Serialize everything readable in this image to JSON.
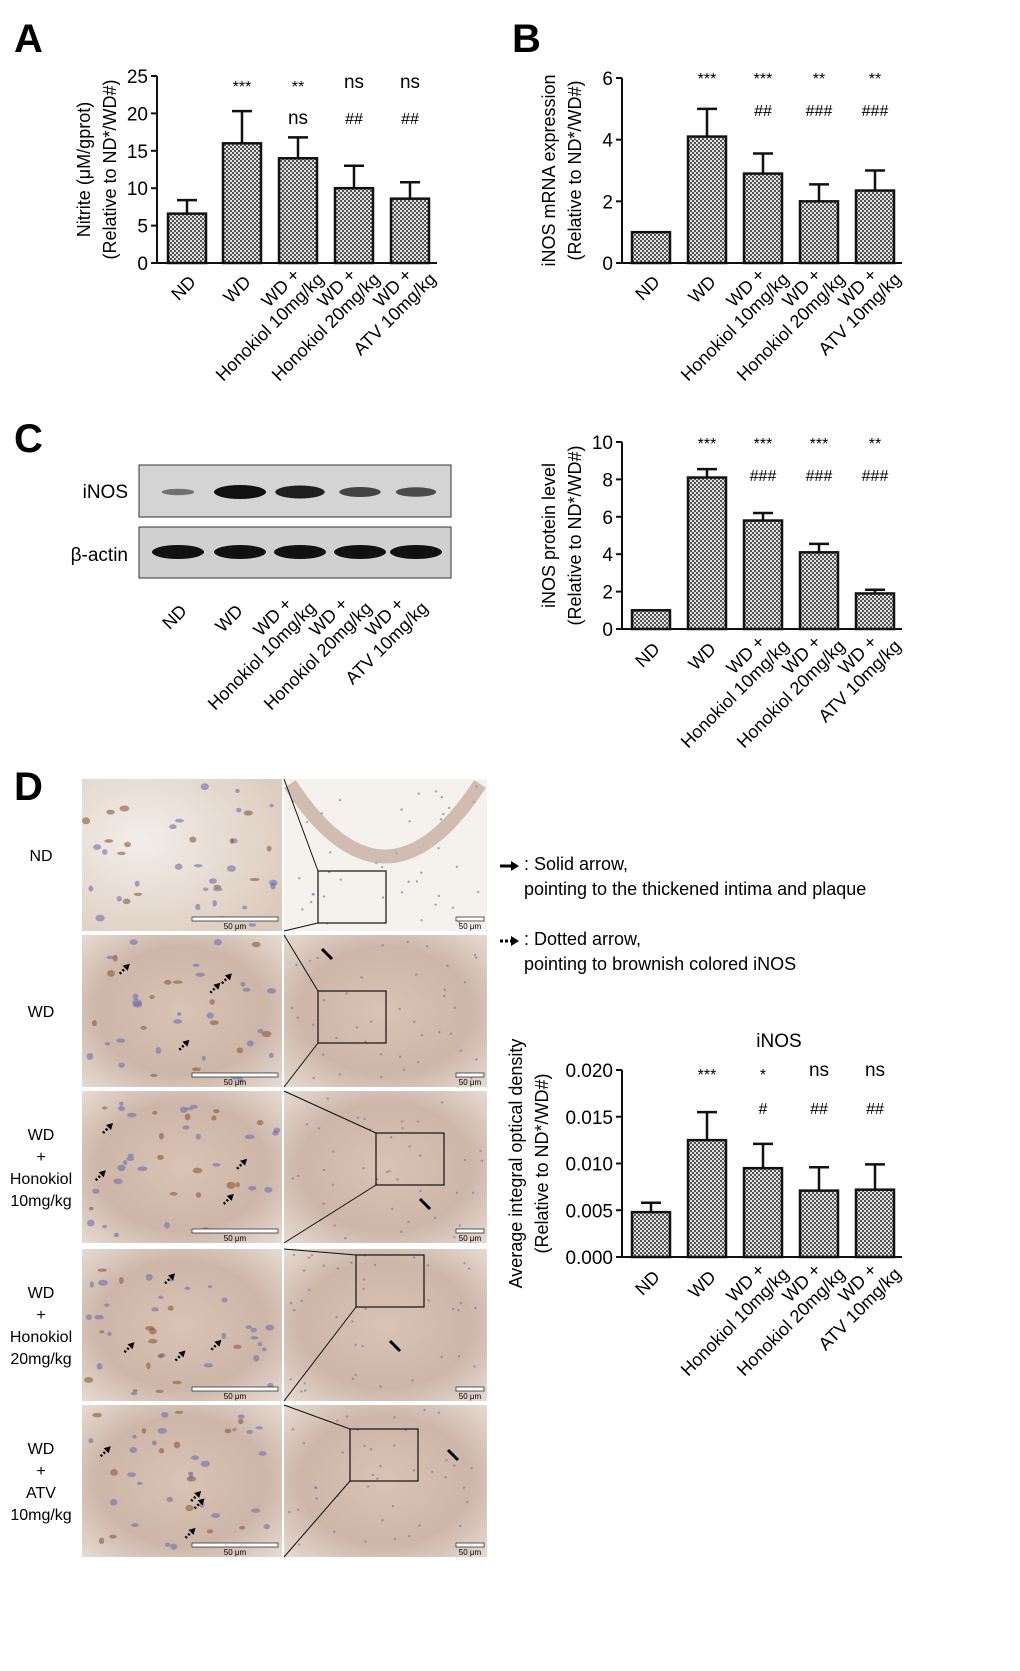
{
  "panels": {
    "a": "A",
    "b": "B",
    "c": "C",
    "d": "D"
  },
  "categories": [
    "ND",
    "WD",
    "WD +|Honokiol 10mg/kg",
    "WD +|Honokiol 20mg/kg",
    "WD +|ATV 10mg/kg"
  ],
  "colors": {
    "bar_fill": "#9a9a9a",
    "bar_stroke": "#111111",
    "stain_brown": "#c8a07a",
    "nuclei_blue": "#6a70b0"
  },
  "chart_data": [
    {
      "id": "A",
      "type": "bar",
      "pattern": "checkerboard",
      "title": "",
      "ylabel": [
        "Nitrite (μM/gprot)",
        "(Relative to ND*/WD#)"
      ],
      "ylim": [
        0,
        25
      ],
      "yticks": [
        "0",
        "5",
        "10",
        "15",
        "20",
        "25"
      ],
      "values": [
        6.6,
        16.0,
        14.0,
        10.0,
        8.6
      ],
      "errors": [
        1.8,
        4.3,
        2.8,
        3.0,
        2.2
      ],
      "sig_top": [
        "",
        "***",
        "**",
        "ns",
        "ns"
      ],
      "sig_bottom": [
        "",
        "",
        "ns",
        "##",
        "##"
      ]
    },
    {
      "id": "B",
      "type": "bar",
      "pattern": "checkerboard",
      "title": "",
      "ylabel": [
        "iNOS mRNA expression",
        "(Relative to ND*/WD#)"
      ],
      "ylim": [
        0,
        6
      ],
      "yticks": [
        "0",
        "2",
        "4",
        "6"
      ],
      "values": [
        1.0,
        4.1,
        2.9,
        2.0,
        2.35
      ],
      "errors": [
        0,
        0.9,
        0.65,
        0.55,
        0.65
      ],
      "sig_top": [
        "",
        "***",
        "***",
        "**",
        "**"
      ],
      "sig_bottom": [
        "",
        "",
        "##",
        "###",
        "###"
      ]
    },
    {
      "id": "C",
      "type": "bar",
      "pattern": "checkerboard",
      "title": "",
      "ylabel": [
        "iNOS protein level",
        "(Relative to ND*/WD#)"
      ],
      "ylim": [
        0,
        10
      ],
      "yticks": [
        "0",
        "2",
        "4",
        "6",
        "8",
        "10"
      ],
      "values": [
        1.0,
        8.1,
        5.8,
        4.1,
        1.9
      ],
      "errors": [
        0,
        0.45,
        0.4,
        0.45,
        0.2
      ],
      "sig_top": [
        "",
        "***",
        "***",
        "***",
        "**"
      ],
      "sig_bottom": [
        "",
        "",
        "###",
        "###",
        "###"
      ]
    },
    {
      "id": "D",
      "type": "bar",
      "pattern": "checkerboard",
      "title": "iNOS",
      "ylabel": [
        "Average integral optical density",
        "(Relative to ND*/WD#)"
      ],
      "ylim": [
        0,
        0.02
      ],
      "yticks": [
        "0.000",
        "0.005",
        "0.010",
        "0.015",
        "0.020"
      ],
      "values": [
        0.0048,
        0.0125,
        0.0095,
        0.0071,
        0.0072
      ],
      "errors": [
        0.001,
        0.003,
        0.0026,
        0.0025,
        0.0027
      ],
      "sig_top": [
        "",
        "***",
        "*",
        "ns",
        "ns"
      ],
      "sig_bottom": [
        "",
        "",
        "#",
        "##",
        "##"
      ]
    }
  ],
  "blot": {
    "rows": [
      {
        "label": "iNOS",
        "intensity": [
          0.25,
          1.0,
          0.9,
          0.6,
          0.55
        ]
      },
      {
        "label": "β-actin",
        "intensity": [
          1,
          1,
          1,
          1,
          1
        ]
      }
    ]
  },
  "histology": {
    "rows": [
      "ND",
      "WD",
      "WD|+|Honokiol|10mg/kg",
      "WD|+|Honokiol|20mg/kg",
      "WD|+|ATV|10mg/kg"
    ],
    "scale_bar": "50 μm"
  },
  "legend": {
    "solid_title": ": Solid arrow,",
    "solid_desc": "pointing to the thickened intima and plaque",
    "dotted_title": ": Dotted arrow,",
    "dotted_desc": "pointing to brownish colored iNOS"
  }
}
